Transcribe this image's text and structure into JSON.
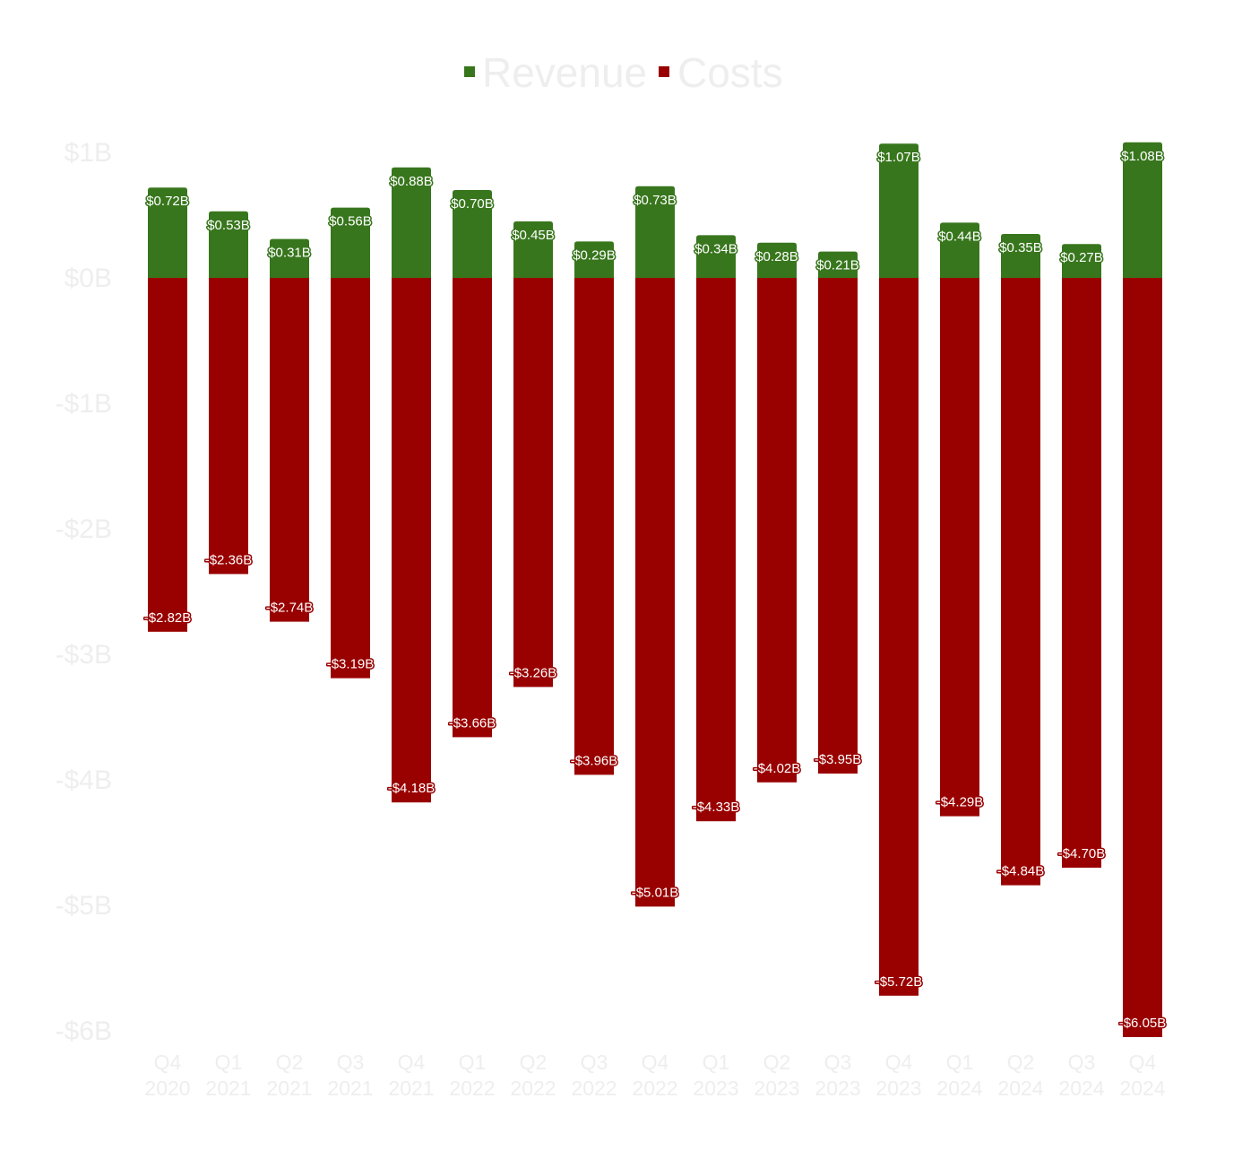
{
  "chart_data": {
    "type": "bar",
    "stacked": true,
    "legend_position": "top-center",
    "grid": false,
    "ylim": [
      -6,
      1
    ],
    "y_ticks": [
      {
        "value": 1,
        "label": "$1B"
      },
      {
        "value": 0,
        "label": "$0B"
      },
      {
        "value": -1,
        "label": "-$1B"
      },
      {
        "value": -2,
        "label": "-$2B"
      },
      {
        "value": -3,
        "label": "-$3B"
      },
      {
        "value": -4,
        "label": "-$4B"
      },
      {
        "value": -5,
        "label": "-$5B"
      },
      {
        "value": -6,
        "label": "-$6B"
      }
    ],
    "categories": [
      [
        "Q4",
        "2020"
      ],
      [
        "Q1",
        "2021"
      ],
      [
        "Q2",
        "2021"
      ],
      [
        "Q3",
        "2021"
      ],
      [
        "Q4",
        "2021"
      ],
      [
        "Q1",
        "2022"
      ],
      [
        "Q2",
        "2022"
      ],
      [
        "Q3",
        "2022"
      ],
      [
        "Q4",
        "2022"
      ],
      [
        "Q1",
        "2023"
      ],
      [
        "Q2",
        "2023"
      ],
      [
        "Q3",
        "2023"
      ],
      [
        "Q4",
        "2023"
      ],
      [
        "Q1",
        "2024"
      ],
      [
        "Q2",
        "2024"
      ],
      [
        "Q3",
        "2024"
      ],
      [
        "Q4",
        "2024"
      ]
    ],
    "series": [
      {
        "name": "Revenue",
        "color": "#38761d",
        "values": [
          0.72,
          0.53,
          0.31,
          0.56,
          0.88,
          0.7,
          0.45,
          0.29,
          0.73,
          0.34,
          0.28,
          0.21,
          1.07,
          0.44,
          0.35,
          0.27,
          1.08
        ],
        "labels": [
          "$0.72B",
          "$0.53B",
          "$0.31B",
          "$0.56B",
          "$0.88B",
          "$0.70B",
          "$0.45B",
          "$0.29B",
          "$0.73B",
          "$0.34B",
          "$0.28B",
          "$0.21B",
          "$1.07B",
          "$0.44B",
          "$0.35B",
          "$0.27B",
          "$1.08B"
        ]
      },
      {
        "name": "Costs",
        "color": "#990000",
        "values": [
          -2.82,
          -2.36,
          -2.74,
          -3.19,
          -4.18,
          -3.66,
          -3.26,
          -3.96,
          -5.01,
          -4.33,
          -4.02,
          -3.95,
          -5.72,
          -4.29,
          -4.84,
          -4.7,
          -6.05
        ],
        "labels": [
          "-$2.82B",
          "-$2.36B",
          "-$2.74B",
          "-$3.19B",
          "-$4.18B",
          "-$3.66B",
          "-$3.26B",
          "-$3.96B",
          "-$5.01B",
          "-$4.33B",
          "-$4.02B",
          "-$3.95B",
          "-$5.72B",
          "-$4.29B",
          "-$4.84B",
          "-$4.70B",
          "-$6.05B"
        ]
      }
    ]
  }
}
